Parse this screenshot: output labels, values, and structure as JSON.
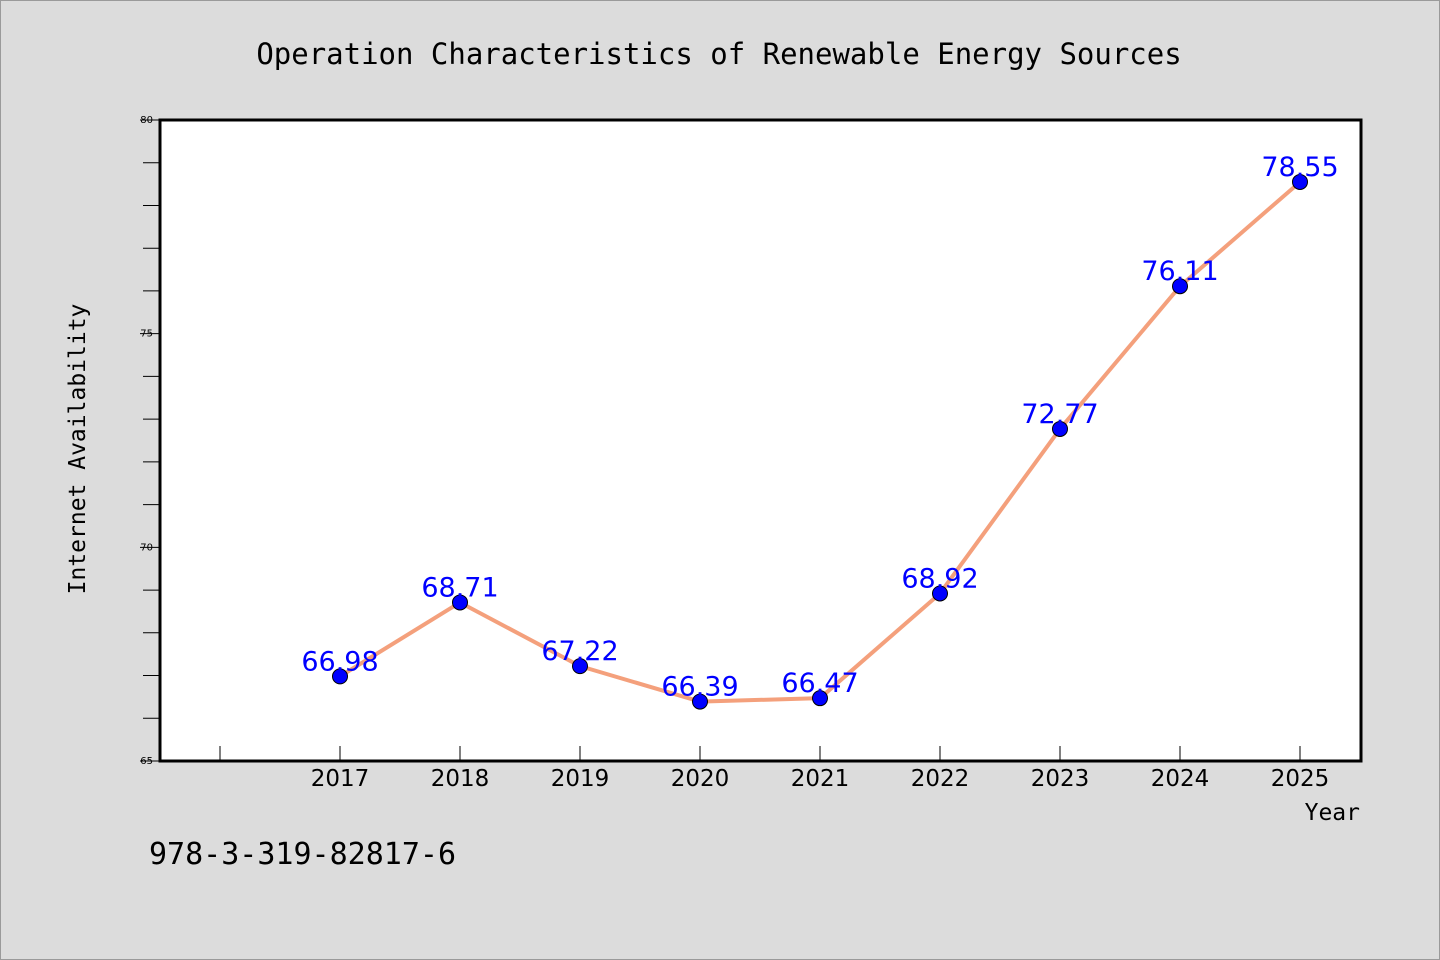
{
  "chart_data": {
    "type": "line",
    "title": "Operation Characteristics of Renewable Energy Sources",
    "xlabel": "Year",
    "ylabel": "Internet Availability",
    "categories": [
      "2017",
      "2018",
      "2019",
      "2020",
      "2021",
      "2022",
      "2023",
      "2024",
      "2025"
    ],
    "series": [
      {
        "values": [
          66.98,
          68.71,
          67.22,
          66.39,
          66.47,
          68.92,
          72.77,
          76.11,
          78.55
        ],
        "labels": [
          "66.98",
          "68.71",
          "67.22",
          "66.39",
          "66.47",
          "68.92",
          "72.77",
          "76.11",
          "78.55"
        ]
      }
    ],
    "ylim": [
      65,
      80
    ],
    "yticks": [
      "65",
      "70",
      "75",
      "80"
    ],
    "grid": false,
    "legend": "none",
    "colors": {
      "line": "#f4a07c",
      "marker": "#0000ff",
      "label": "#0000ff",
      "background": "#dcdcdc",
      "plot_area": "#ffffff"
    }
  },
  "footer": {
    "isbn": "978-3-319-82817-6"
  }
}
